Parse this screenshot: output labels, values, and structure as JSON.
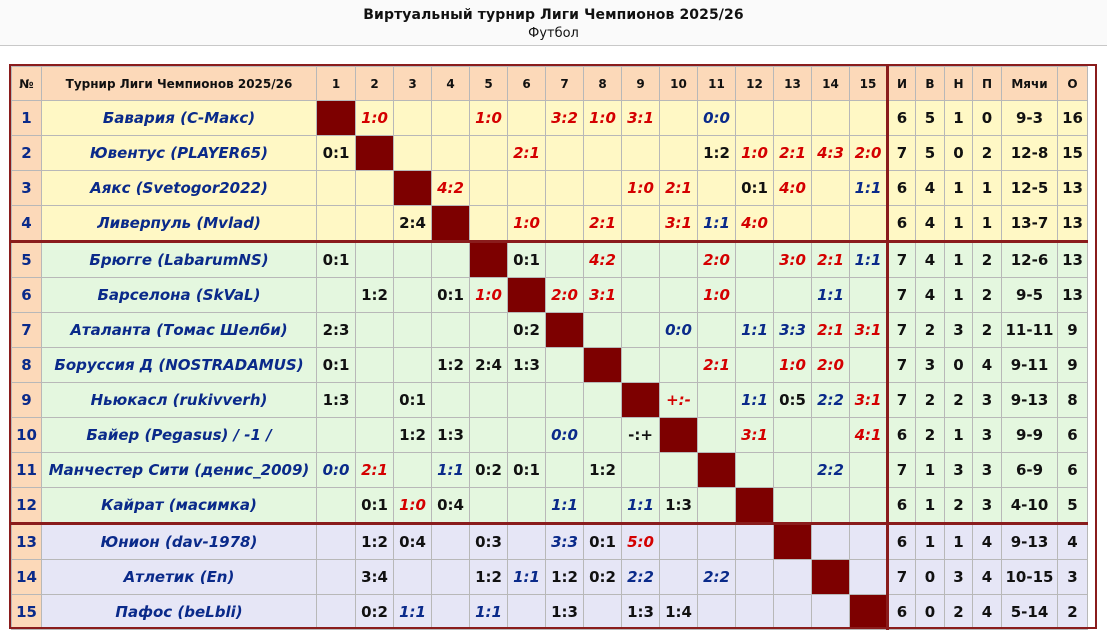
{
  "header": {
    "title": "Виртуальный турнир Лиги Чемпионов 2025/26",
    "subtitle": "Футбол"
  },
  "table": {
    "headers": {
      "no": "№",
      "tournament": "Турнир Лиги Чемпионов 2025/26",
      "cols": [
        "1",
        "2",
        "3",
        "4",
        "5",
        "6",
        "7",
        "8",
        "9",
        "10",
        "11",
        "12",
        "13",
        "14",
        "15"
      ],
      "games": "И",
      "wins": "В",
      "draws": "Н",
      "losses": "П",
      "goals": "Мячи",
      "points": "О"
    },
    "rows": [
      {
        "no": "1",
        "team": "Бавария (С-Макс)",
        "zone": "zy",
        "cells": [
          "",
          "1:0",
          "",
          "",
          "1:0",
          "",
          "3:2",
          "1:0",
          "3:1",
          "",
          "0:0",
          "",
          "",
          "",
          ""
        ],
        "games": "6",
        "wins": "5",
        "draws": "1",
        "losses": "0",
        "goals": "9-3",
        "points": "16"
      },
      {
        "no": "2",
        "team": "Ювентус (PLAYER65)",
        "zone": "zy",
        "cells": [
          "0:1",
          "",
          "",
          "",
          "",
          "2:1",
          "",
          "",
          "",
          "",
          "1:2",
          "1:0",
          "2:1",
          "4:3",
          "2:0"
        ],
        "games": "7",
        "wins": "5",
        "draws": "0",
        "losses": "2",
        "goals": "12-8",
        "points": "15"
      },
      {
        "no": "3",
        "team": "Аякс (Svetogor2022)",
        "zone": "zy",
        "cells": [
          "",
          "",
          "",
          "4:2",
          "",
          "",
          "",
          "",
          "1:0",
          "2:1",
          "",
          "0:1",
          "4:0",
          "",
          "1:1"
        ],
        "games": "6",
        "wins": "4",
        "draws": "1",
        "losses": "1",
        "goals": "12-5",
        "points": "13"
      },
      {
        "no": "4",
        "team": "Ливерпуль (Mvlad)",
        "zone": "zy",
        "cells": [
          "",
          "",
          "2:4",
          "",
          "",
          "1:0",
          "",
          "2:1",
          "",
          "3:1",
          "1:1",
          "4:0",
          "",
          "",
          ""
        ],
        "games": "6",
        "wins": "4",
        "draws": "1",
        "losses": "1",
        "goals": "13-7",
        "points": "13"
      },
      {
        "no": "5",
        "team": "Брюгге (LabarumNS)",
        "zone": "zg",
        "cells": [
          "0:1",
          "",
          "",
          "",
          "",
          "0:1",
          "",
          "4:2",
          "",
          "",
          "2:0",
          "",
          "3:0",
          "2:1",
          "1:1"
        ],
        "games": "7",
        "wins": "4",
        "draws": "1",
        "losses": "2",
        "goals": "12-6",
        "points": "13"
      },
      {
        "no": "6",
        "team": "Барселона (SkVaL)",
        "zone": "zg",
        "cells": [
          "",
          "1:2",
          "",
          "0:1",
          "1:0",
          "",
          "2:0",
          "3:1",
          "",
          "",
          "1:0",
          "",
          "",
          "1:1",
          ""
        ],
        "games": "7",
        "wins": "4",
        "draws": "1",
        "losses": "2",
        "goals": "9-5",
        "points": "13"
      },
      {
        "no": "7",
        "team": "Аталанта (Томас Шелби)",
        "zone": "zg",
        "cells": [
          "2:3",
          "",
          "",
          "",
          "",
          "0:2",
          "",
          "",
          "",
          "0:0",
          "",
          "1:1",
          "3:3",
          "2:1",
          "3:1"
        ],
        "games": "7",
        "wins": "2",
        "draws": "3",
        "losses": "2",
        "goals": "11-11",
        "points": "9"
      },
      {
        "no": "8",
        "team": "Боруссия Д (NOSTRADAMUS)",
        "zone": "zg",
        "cells": [
          "0:1",
          "",
          "",
          "1:2",
          "2:4",
          "1:3",
          "",
          "",
          "",
          "",
          "2:1",
          "",
          "1:0",
          "2:0",
          ""
        ],
        "games": "7",
        "wins": "3",
        "draws": "0",
        "losses": "4",
        "goals": "9-11",
        "points": "9"
      },
      {
        "no": "9",
        "team": "Ньюкасл (rukivverh)",
        "zone": "zg",
        "cells": [
          "1:3",
          "",
          "0:1",
          "",
          "",
          "",
          "",
          "",
          "",
          "+:-",
          "",
          "1:1",
          "0:5",
          "2:2",
          "3:1"
        ],
        "games": "7",
        "wins": "2",
        "draws": "2",
        "losses": "3",
        "goals": "9-13",
        "points": "8"
      },
      {
        "no": "10",
        "team": "Байер (Pegasus)    / -1 /",
        "zone": "zg",
        "cells": [
          "",
          "",
          "1:2",
          "1:3",
          "",
          "",
          "0:0",
          "",
          "-:+",
          "",
          "",
          "3:1",
          "",
          "",
          "4:1"
        ],
        "games": "6",
        "wins": "2",
        "draws": "1",
        "losses": "3",
        "goals": "9-9",
        "points": "6"
      },
      {
        "no": "11",
        "team": "Манчестер Сити (денис_2009)",
        "zone": "zg",
        "cells": [
          "0:0",
          "2:1",
          "",
          "1:1",
          "0:2",
          "0:1",
          "",
          "1:2",
          "",
          "",
          "",
          "",
          "",
          "2:2",
          ""
        ],
        "games": "7",
        "wins": "1",
        "draws": "3",
        "losses": "3",
        "goals": "6-9",
        "points": "6"
      },
      {
        "no": "12",
        "team": "Кайрат (масимка)",
        "zone": "zg",
        "cells": [
          "",
          "0:1",
          "1:0",
          "0:4",
          "",
          "",
          "1:1",
          "",
          "1:1",
          "1:3",
          "",
          "",
          "",
          "",
          ""
        ],
        "games": "6",
        "wins": "1",
        "draws": "2",
        "losses": "3",
        "goals": "4-10",
        "points": "5"
      },
      {
        "no": "13",
        "team": "Юнион (dav-1978)",
        "zone": "zb",
        "cells": [
          "",
          "1:2",
          "0:4",
          "",
          "0:3",
          "",
          "3:3",
          "0:1",
          "5:0",
          "",
          "",
          "",
          "",
          "",
          ""
        ],
        "games": "6",
        "wins": "1",
        "draws": "1",
        "losses": "4",
        "goals": "9-13",
        "points": "4"
      },
      {
        "no": "14",
        "team": "Атлетик (En)",
        "zone": "zb",
        "cells": [
          "",
          "3:4",
          "",
          "",
          "1:2",
          "1:1",
          "1:2",
          "0:2",
          "2:2",
          "",
          "2:2",
          "",
          "",
          "",
          ""
        ],
        "games": "7",
        "wins": "0",
        "draws": "3",
        "losses": "4",
        "goals": "10-15",
        "points": "3"
      },
      {
        "no": "15",
        "team": "Пафос (beLbli)",
        "zone": "zb",
        "cells": [
          "",
          "0:2",
          "1:1",
          "",
          "1:1",
          "",
          "1:3",
          "",
          "1:3",
          "1:4",
          "",
          "",
          "",
          "",
          ""
        ],
        "games": "6",
        "wins": "0",
        "draws": "2",
        "losses": "4",
        "goals": "5-14",
        "points": "2"
      }
    ]
  }
}
